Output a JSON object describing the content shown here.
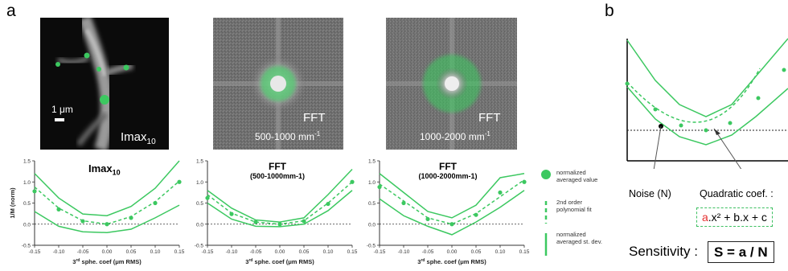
{
  "panel_a": {
    "letter": "a",
    "images": [
      {
        "label_main": "Imax",
        "label_sub": "10",
        "scalebar": "1 μm"
      },
      {
        "label_main": "FFT",
        "label_range": "500-1000 mm",
        "label_sup": "-1"
      },
      {
        "label_main": "FFT",
        "label_range": "1000-2000 mm",
        "label_sup": "-1"
      }
    ],
    "plots": [
      {
        "title_main": "Imax",
        "title_sub": "10",
        "title_line2": ""
      },
      {
        "title_main": "FFT",
        "title_sub": "",
        "title_line2": "(500-1000mm-1)"
      },
      {
        "title_main": "FFT",
        "title_sub": "",
        "title_line2": "(1000-2000mm-1)"
      }
    ],
    "y_ticks": [
      "1.5",
      "1.0",
      "0.5",
      "0.0",
      "-0.5"
    ],
    "x_ticks": [
      "-0.15",
      "-0.10",
      "-0.05",
      "0.00",
      "0.05",
      "0.10",
      "0.15"
    ],
    "ylabel": "1/M (norm)",
    "xlabel_pre": "3",
    "xlabel_sup": "rd",
    "xlabel_post": " sphe. coef (μm RMS)",
    "legend": [
      {
        "line1": "normalized",
        "line2": "averaged value"
      },
      {
        "line1": "2nd order",
        "line2": "polynomial fit"
      },
      {
        "line1": "normalized",
        "line2": "averaged  st. dev."
      }
    ],
    "colors": {
      "green": "#3cc860",
      "dark": "#2b2b2b"
    }
  },
  "chart_data": [
    {
      "type": "line",
      "x": [
        -0.15,
        -0.1,
        -0.05,
        0.0,
        0.05,
        0.1,
        0.15
      ],
      "ylim": [
        -0.5,
        1.5
      ],
      "xlim": [
        -0.15,
        0.15
      ],
      "points": [
        0.78,
        0.35,
        0.07,
        0.0,
        0.15,
        0.5,
        1.0
      ],
      "fit": [
        0.88,
        0.38,
        0.08,
        0.0,
        0.18,
        0.53,
        1.02
      ],
      "upper": [
        1.2,
        0.62,
        0.24,
        0.2,
        0.42,
        0.85,
        1.5
      ],
      "lower": [
        0.3,
        -0.05,
        -0.18,
        -0.2,
        -0.12,
        0.15,
        0.45
      ]
    },
    {
      "type": "line",
      "x": [
        -0.15,
        -0.1,
        -0.05,
        0.0,
        0.05,
        0.1,
        0.15
      ],
      "ylim": [
        -0.5,
        1.5
      ],
      "xlim": [
        -0.15,
        0.15
      ],
      "points": [
        0.62,
        0.24,
        0.05,
        0.0,
        0.07,
        0.48,
        1.0
      ],
      "fit": [
        0.7,
        0.26,
        0.05,
        0.0,
        0.08,
        0.5,
        1.0
      ],
      "upper": [
        0.8,
        0.38,
        0.1,
        0.05,
        0.15,
        0.7,
        1.3
      ],
      "lower": [
        0.5,
        0.12,
        -0.05,
        -0.06,
        0.0,
        0.32,
        0.8
      ]
    },
    {
      "type": "line",
      "x": [
        -0.15,
        -0.1,
        -0.05,
        0.0,
        0.05,
        0.1,
        0.15
      ],
      "ylim": [
        -0.5,
        1.5
      ],
      "xlim": [
        -0.15,
        0.15
      ],
      "points": [
        0.88,
        0.5,
        0.12,
        0.0,
        0.22,
        0.75,
        1.0
      ],
      "fit": [
        0.95,
        0.55,
        0.15,
        0.0,
        0.25,
        0.65,
        1.05
      ],
      "upper": [
        1.2,
        0.75,
        0.3,
        0.15,
        0.45,
        1.1,
        1.2
      ],
      "lower": [
        0.6,
        0.2,
        -0.05,
        -0.25,
        0.05,
        0.4,
        0.8
      ]
    }
  ],
  "panel_b": {
    "letter": "b",
    "noise_label": "Noise (N)",
    "quad_label": "Quadratic coef. :",
    "formula_a": "a",
    "formula_rest": ".x² + b.x + c",
    "sens_label": "Sensitivity :",
    "sens_formula": "S = a / N",
    "colors": {
      "highlight": "#e53030",
      "green": "#3cc860"
    }
  }
}
